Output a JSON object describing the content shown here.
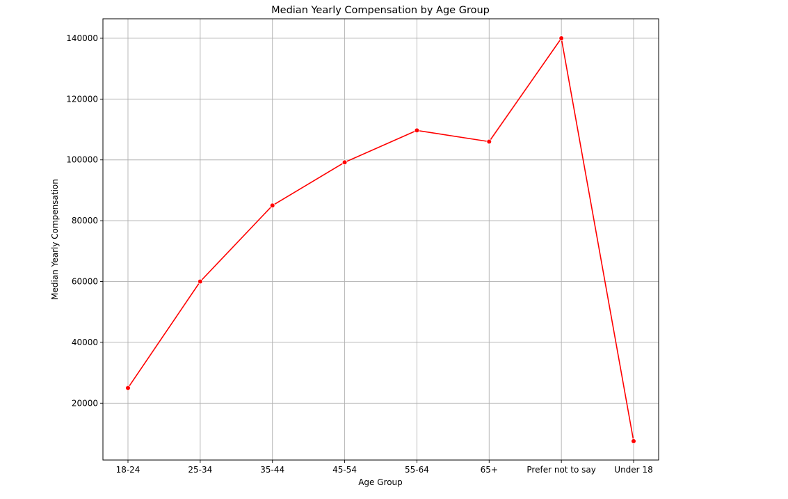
{
  "chart_data": {
    "type": "line",
    "title": "Median Yearly Compensation by Age Group",
    "xlabel": "Age Group",
    "ylabel": "Median Yearly Compensation",
    "categories": [
      "18-24",
      "25-34",
      "35-44",
      "45-54",
      "55-64",
      "65+",
      "Prefer not to say",
      "Under 18"
    ],
    "series": [
      {
        "values": [
          25000,
          60000,
          85000,
          99200,
          109700,
          106000,
          140000,
          7500
        ]
      }
    ],
    "yticks": [
      20000,
      40000,
      60000,
      80000,
      100000,
      120000,
      140000
    ],
    "ylim": [
      1300,
      146400
    ],
    "grid": true,
    "line_color": "#ff0000",
    "marker": "circle"
  }
}
